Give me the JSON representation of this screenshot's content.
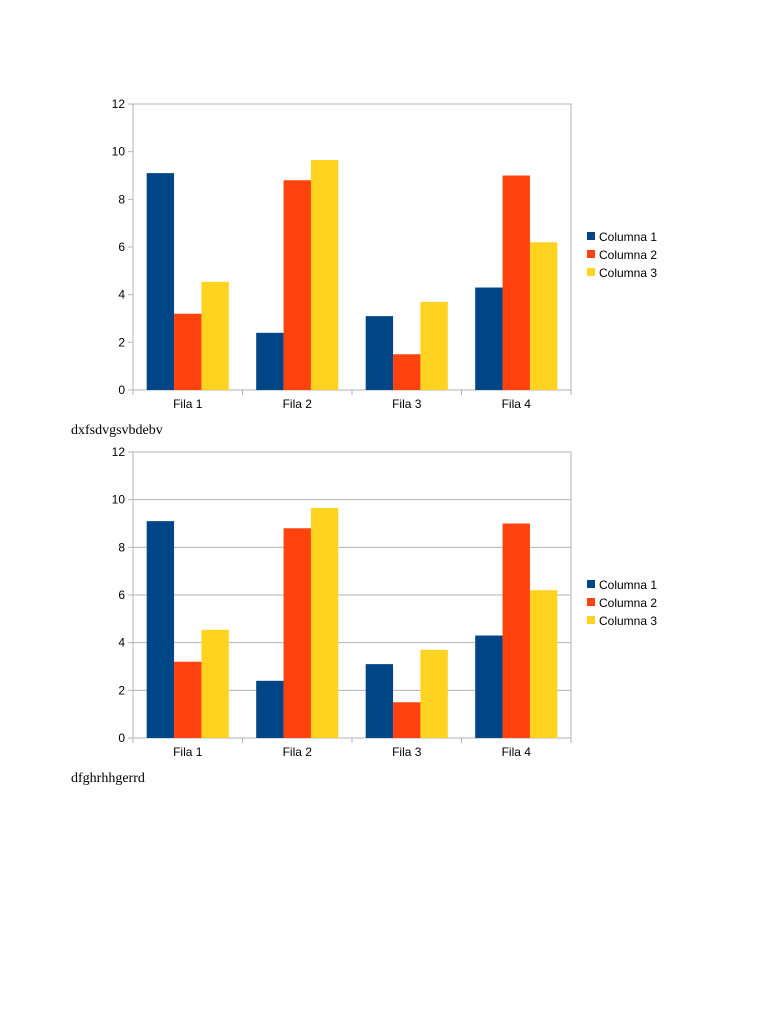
{
  "colors": {
    "series": [
      "#004586",
      "#ff420e",
      "#ffd320"
    ],
    "axis": "#b3b3b3",
    "grid": "#b3b3b3"
  },
  "captions": [
    "dxfsdvgsvbdebv",
    "dfghrhhgerrd"
  ],
  "chart_data": [
    {
      "type": "bar",
      "title": "",
      "xlabel": "",
      "ylabel": "",
      "categories": [
        "Fila 1",
        "Fila 2",
        "Fila 3",
        "Fila 4"
      ],
      "series": [
        {
          "name": "Columna 1",
          "values": [
            9.1,
            2.4,
            3.1,
            4.3
          ]
        },
        {
          "name": "Columna 2",
          "values": [
            3.2,
            8.8,
            1.5,
            9
          ]
        },
        {
          "name": "Columna 3",
          "values": [
            4.54,
            9.65,
            3.7,
            6.2
          ]
        }
      ],
      "ylim": [
        0,
        12
      ],
      "yticks": [
        0,
        2,
        4,
        6,
        8,
        10,
        12
      ],
      "grid": false,
      "legend": "right"
    },
    {
      "type": "bar",
      "title": "",
      "xlabel": "",
      "ylabel": "",
      "categories": [
        "Fila 1",
        "Fila 2",
        "Fila 3",
        "Fila 4"
      ],
      "series": [
        {
          "name": "Columna 1",
          "values": [
            9.1,
            2.4,
            3.1,
            4.3
          ]
        },
        {
          "name": "Columna 2",
          "values": [
            3.2,
            8.8,
            1.5,
            9
          ]
        },
        {
          "name": "Columna 3",
          "values": [
            4.54,
            9.65,
            3.7,
            6.2
          ]
        }
      ],
      "ylim": [
        0,
        12
      ],
      "yticks": [
        0,
        2,
        4,
        6,
        8,
        10,
        12
      ],
      "grid": true,
      "legend": "right"
    }
  ]
}
